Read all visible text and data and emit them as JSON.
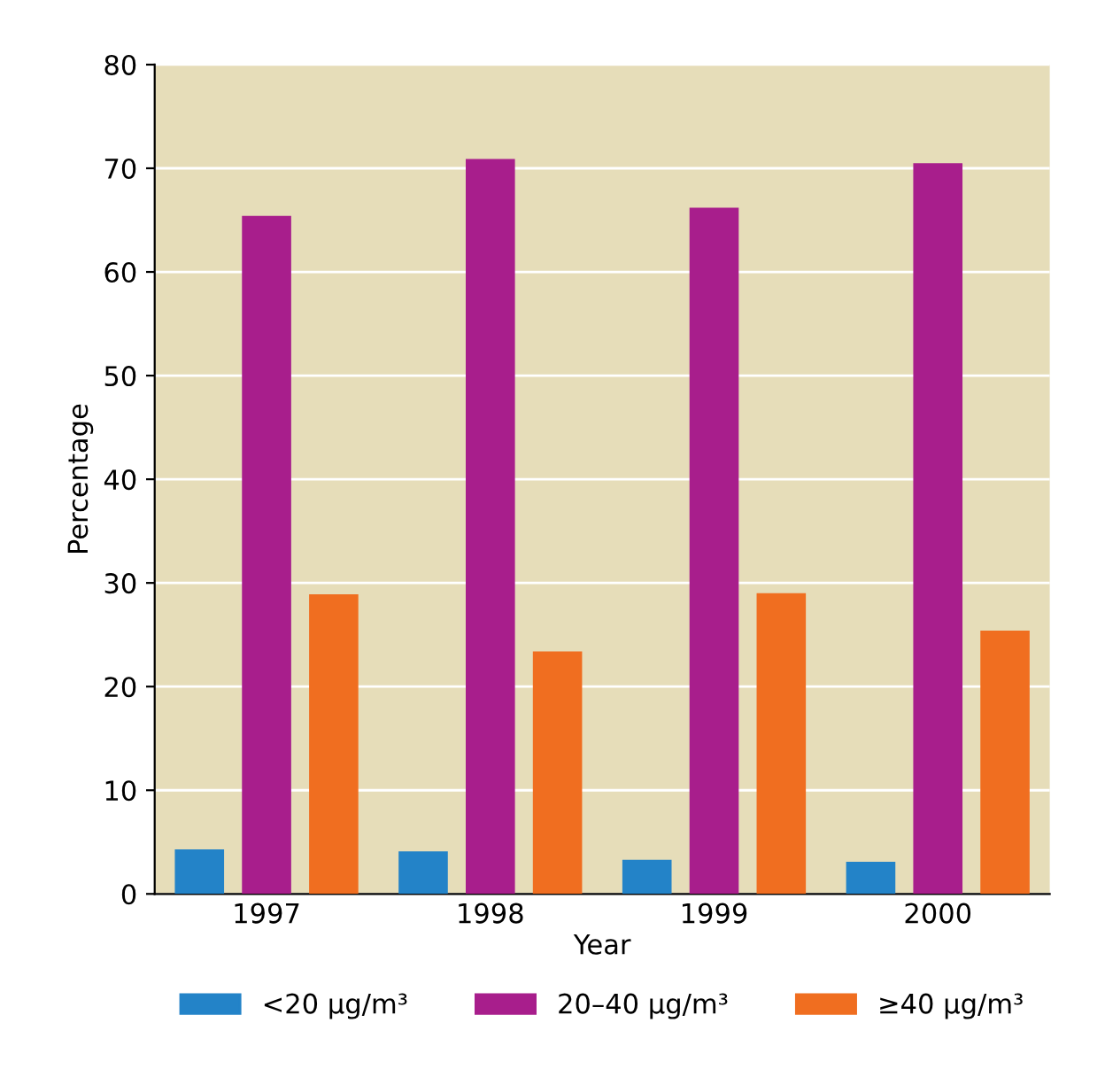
{
  "chart_data": {
    "type": "bar",
    "xlabel": "Year",
    "ylabel": "Percentage",
    "categories": [
      "1997",
      "1998",
      "1999",
      "2000"
    ],
    "series": [
      {
        "name": "<20 µg/m³",
        "color": "#2383c8",
        "values": [
          4.3,
          4.1,
          3.3,
          3.1
        ]
      },
      {
        "name": "20–40 µg/m³",
        "color": "#a81e8c",
        "values": [
          65.4,
          70.9,
          66.2,
          70.5
        ]
      },
      {
        "name": "≥40 µg/m³",
        "color": "#f06e20",
        "values": [
          28.9,
          23.4,
          29.0,
          25.4
        ]
      }
    ],
    "ylim": [
      0,
      80
    ],
    "yticks": [
      0,
      10,
      20,
      30,
      40,
      50,
      60,
      70,
      80
    ],
    "grid": "y",
    "legend": "bottom"
  }
}
